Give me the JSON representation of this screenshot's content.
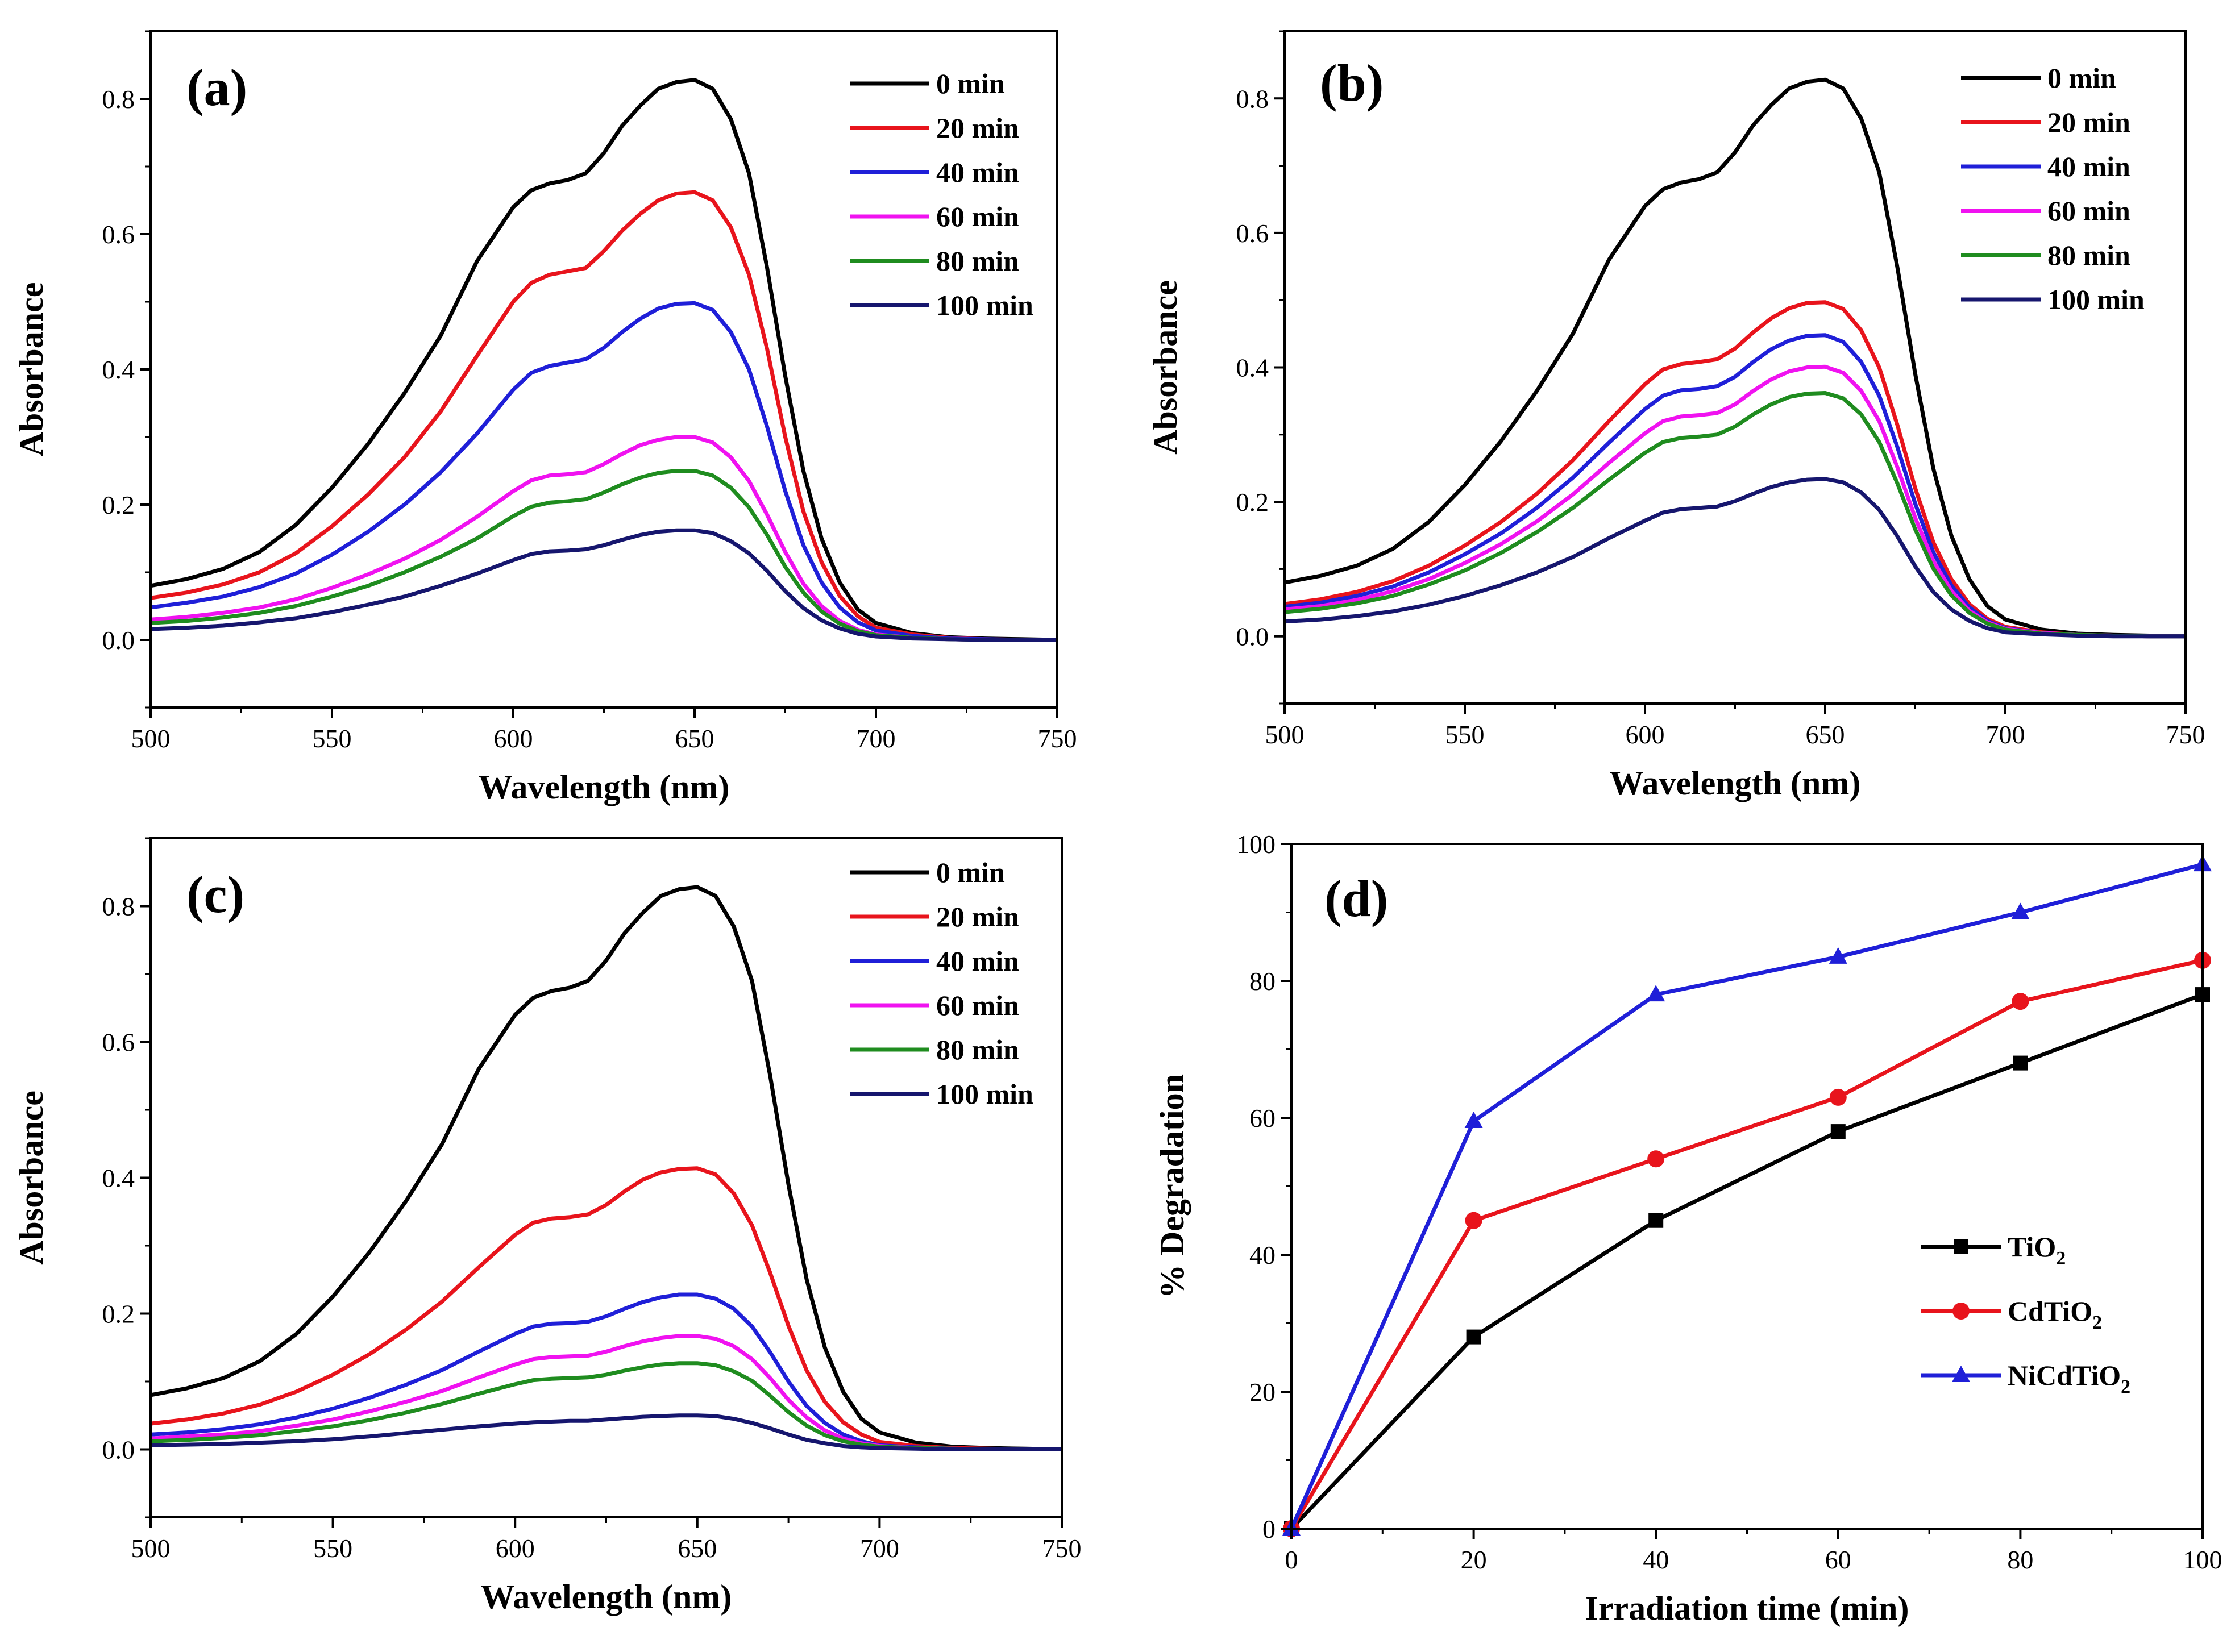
{
  "chart_data": [
    {
      "id": "a",
      "type": "line",
      "panel_label": "(a)",
      "xlabel": "Wavelength (nm)",
      "ylabel": "Absorbance",
      "xlim": [
        500,
        750
      ],
      "ylim": [
        -0.1,
        0.9
      ],
      "xticks": [
        500,
        550,
        600,
        650,
        700,
        750
      ],
      "yticks": [
        0.0,
        0.2,
        0.4,
        0.6,
        0.8
      ],
      "xtick_labels": [
        "500",
        "550",
        "600",
        "650",
        "700",
        "750"
      ],
      "ytick_labels": [
        "0.0",
        "0.2",
        "0.4",
        "0.6",
        "0.8"
      ],
      "legend_position": "top-right",
      "x": [
        500,
        510,
        520,
        530,
        540,
        550,
        560,
        570,
        580,
        590,
        600,
        605,
        610,
        615,
        620,
        625,
        630,
        635,
        640,
        645,
        650,
        655,
        660,
        665,
        670,
        675,
        680,
        685,
        690,
        695,
        700,
        710,
        720,
        730,
        740,
        750
      ],
      "series": [
        {
          "name": "0 min",
          "color": "#000000",
          "values": [
            0.08,
            0.09,
            0.105,
            0.13,
            0.17,
            0.225,
            0.29,
            0.365,
            0.45,
            0.56,
            0.64,
            0.665,
            0.675,
            0.68,
            0.69,
            0.72,
            0.76,
            0.79,
            0.815,
            0.825,
            0.828,
            0.815,
            0.77,
            0.69,
            0.55,
            0.39,
            0.25,
            0.15,
            0.085,
            0.045,
            0.025,
            0.01,
            0.004,
            0.002,
            0.001,
            0.0
          ]
        },
        {
          "name": "20 min",
          "color": "#e8141c",
          "values": [
            0.062,
            0.07,
            0.082,
            0.1,
            0.128,
            0.168,
            0.215,
            0.27,
            0.338,
            0.42,
            0.5,
            0.528,
            0.54,
            0.545,
            0.55,
            0.575,
            0.605,
            0.63,
            0.65,
            0.66,
            0.662,
            0.65,
            0.61,
            0.54,
            0.43,
            0.3,
            0.19,
            0.115,
            0.065,
            0.035,
            0.018,
            0.008,
            0.003,
            0.001,
            0.0,
            0.0
          ]
        },
        {
          "name": "40 min",
          "color": "#1f1fd8",
          "values": [
            0.048,
            0.055,
            0.064,
            0.078,
            0.098,
            0.126,
            0.16,
            0.2,
            0.248,
            0.305,
            0.37,
            0.395,
            0.405,
            0.41,
            0.415,
            0.432,
            0.455,
            0.475,
            0.49,
            0.497,
            0.498,
            0.488,
            0.455,
            0.4,
            0.315,
            0.22,
            0.14,
            0.085,
            0.048,
            0.026,
            0.014,
            0.006,
            0.002,
            0.001,
            0.0,
            0.0
          ]
        },
        {
          "name": "60 min",
          "color": "#f012f0",
          "values": [
            0.03,
            0.034,
            0.04,
            0.048,
            0.06,
            0.077,
            0.097,
            0.12,
            0.148,
            0.182,
            0.22,
            0.236,
            0.243,
            0.245,
            0.248,
            0.26,
            0.275,
            0.288,
            0.296,
            0.3,
            0.3,
            0.292,
            0.27,
            0.235,
            0.185,
            0.13,
            0.083,
            0.05,
            0.028,
            0.015,
            0.008,
            0.003,
            0.001,
            0.0,
            0.0,
            0.0
          ]
        },
        {
          "name": "80 min",
          "color": "#1f8c1f",
          "values": [
            0.025,
            0.028,
            0.033,
            0.04,
            0.05,
            0.064,
            0.08,
            0.1,
            0.123,
            0.15,
            0.183,
            0.197,
            0.203,
            0.205,
            0.208,
            0.218,
            0.23,
            0.24,
            0.247,
            0.25,
            0.25,
            0.243,
            0.225,
            0.196,
            0.155,
            0.108,
            0.07,
            0.042,
            0.024,
            0.013,
            0.007,
            0.003,
            0.001,
            0.0,
            0.0,
            0.0
          ]
        },
        {
          "name": "100 min",
          "color": "#16166e",
          "values": [
            0.016,
            0.018,
            0.021,
            0.026,
            0.032,
            0.041,
            0.052,
            0.064,
            0.08,
            0.098,
            0.118,
            0.127,
            0.131,
            0.132,
            0.134,
            0.14,
            0.148,
            0.155,
            0.16,
            0.162,
            0.162,
            0.158,
            0.146,
            0.128,
            0.102,
            0.072,
            0.047,
            0.029,
            0.017,
            0.009,
            0.005,
            0.002,
            0.001,
            0.0,
            0.0,
            0.0
          ]
        }
      ]
    },
    {
      "id": "b",
      "type": "line",
      "panel_label": "(b)",
      "xlabel": "Wavelength (nm)",
      "ylabel": "Absorbance",
      "xlim": [
        500,
        750
      ],
      "ylim": [
        -0.1,
        0.9
      ],
      "xticks": [
        500,
        550,
        600,
        650,
        700,
        750
      ],
      "yticks": [
        0.0,
        0.2,
        0.4,
        0.6,
        0.8
      ],
      "xtick_labels": [
        "500",
        "550",
        "600",
        "650",
        "700",
        "750"
      ],
      "ytick_labels": [
        "0.0",
        "0.2",
        "0.4",
        "0.6",
        "0.8"
      ],
      "legend_position": "top-right",
      "x": [
        500,
        510,
        520,
        530,
        540,
        550,
        560,
        570,
        580,
        590,
        600,
        605,
        610,
        615,
        620,
        625,
        630,
        635,
        640,
        645,
        650,
        655,
        660,
        665,
        670,
        675,
        680,
        685,
        690,
        695,
        700,
        710,
        720,
        730,
        740,
        750
      ],
      "series": [
        {
          "name": "0 min",
          "color": "#000000",
          "values": [
            0.08,
            0.09,
            0.105,
            0.13,
            0.17,
            0.225,
            0.29,
            0.365,
            0.45,
            0.56,
            0.64,
            0.665,
            0.675,
            0.68,
            0.69,
            0.72,
            0.76,
            0.79,
            0.815,
            0.825,
            0.828,
            0.815,
            0.77,
            0.69,
            0.55,
            0.39,
            0.25,
            0.15,
            0.085,
            0.045,
            0.025,
            0.01,
            0.004,
            0.002,
            0.001,
            0.0
          ]
        },
        {
          "name": "20 min",
          "color": "#e8141c",
          "values": [
            0.048,
            0.055,
            0.066,
            0.082,
            0.105,
            0.135,
            0.17,
            0.212,
            0.262,
            0.32,
            0.375,
            0.397,
            0.405,
            0.408,
            0.412,
            0.428,
            0.452,
            0.473,
            0.488,
            0.496,
            0.497,
            0.487,
            0.455,
            0.4,
            0.315,
            0.22,
            0.14,
            0.085,
            0.048,
            0.026,
            0.014,
            0.006,
            0.002,
            0.001,
            0.0,
            0.0
          ]
        },
        {
          "name": "40 min",
          "color": "#1f1fd8",
          "values": [
            0.044,
            0.05,
            0.06,
            0.074,
            0.095,
            0.122,
            0.153,
            0.191,
            0.236,
            0.288,
            0.338,
            0.358,
            0.366,
            0.368,
            0.372,
            0.386,
            0.408,
            0.427,
            0.44,
            0.447,
            0.448,
            0.438,
            0.408,
            0.358,
            0.282,
            0.197,
            0.125,
            0.076,
            0.043,
            0.023,
            0.012,
            0.005,
            0.002,
            0.001,
            0.0,
            0.0
          ]
        },
        {
          "name": "60 min",
          "color": "#f012f0",
          "values": [
            0.04,
            0.045,
            0.054,
            0.067,
            0.085,
            0.109,
            0.137,
            0.171,
            0.211,
            0.258,
            0.302,
            0.32,
            0.327,
            0.329,
            0.332,
            0.345,
            0.365,
            0.382,
            0.394,
            0.4,
            0.401,
            0.392,
            0.365,
            0.32,
            0.252,
            0.176,
            0.112,
            0.068,
            0.038,
            0.021,
            0.011,
            0.005,
            0.002,
            0.001,
            0.0,
            0.0
          ]
        },
        {
          "name": "80 min",
          "color": "#1f8c1f",
          "values": [
            0.036,
            0.041,
            0.049,
            0.06,
            0.077,
            0.098,
            0.124,
            0.155,
            0.191,
            0.233,
            0.273,
            0.289,
            0.295,
            0.297,
            0.3,
            0.312,
            0.33,
            0.345,
            0.356,
            0.361,
            0.362,
            0.354,
            0.33,
            0.289,
            0.228,
            0.159,
            0.101,
            0.061,
            0.035,
            0.019,
            0.01,
            0.004,
            0.002,
            0.001,
            0.0,
            0.0
          ]
        },
        {
          "name": "100 min",
          "color": "#16166e",
          "values": [
            0.022,
            0.025,
            0.03,
            0.037,
            0.047,
            0.06,
            0.076,
            0.095,
            0.118,
            0.146,
            0.172,
            0.184,
            0.189,
            0.191,
            0.193,
            0.201,
            0.212,
            0.222,
            0.229,
            0.233,
            0.234,
            0.229,
            0.214,
            0.188,
            0.149,
            0.104,
            0.066,
            0.04,
            0.023,
            0.012,
            0.006,
            0.003,
            0.001,
            0.0,
            0.0,
            0.0
          ]
        }
      ]
    },
    {
      "id": "c",
      "type": "line",
      "panel_label": "(c)",
      "xlabel": "Wavelength (nm)",
      "ylabel": "Absorbance",
      "xlim": [
        500,
        750
      ],
      "ylim": [
        -0.1,
        0.9
      ],
      "xticks": [
        500,
        550,
        600,
        650,
        700,
        750
      ],
      "yticks": [
        0.0,
        0.2,
        0.4,
        0.6,
        0.8
      ],
      "xtick_labels": [
        "500",
        "550",
        "600",
        "650",
        "700",
        "750"
      ],
      "ytick_labels": [
        "0.0",
        "0.2",
        "0.4",
        "0.6",
        "0.8"
      ],
      "legend_position": "top-right",
      "x": [
        500,
        510,
        520,
        530,
        540,
        550,
        560,
        570,
        580,
        590,
        600,
        605,
        610,
        615,
        620,
        625,
        630,
        635,
        640,
        645,
        650,
        655,
        660,
        665,
        670,
        675,
        680,
        685,
        690,
        695,
        700,
        710,
        720,
        730,
        740,
        750
      ],
      "series": [
        {
          "name": "0 min",
          "color": "#000000",
          "values": [
            0.08,
            0.09,
            0.105,
            0.13,
            0.17,
            0.225,
            0.29,
            0.365,
            0.45,
            0.56,
            0.64,
            0.665,
            0.675,
            0.68,
            0.69,
            0.72,
            0.76,
            0.79,
            0.815,
            0.825,
            0.828,
            0.815,
            0.77,
            0.69,
            0.55,
            0.39,
            0.25,
            0.15,
            0.085,
            0.045,
            0.025,
            0.01,
            0.004,
            0.002,
            0.001,
            0.0
          ]
        },
        {
          "name": "20 min",
          "color": "#e8141c",
          "values": [
            0.038,
            0.044,
            0.053,
            0.066,
            0.085,
            0.11,
            0.14,
            0.176,
            0.218,
            0.268,
            0.316,
            0.334,
            0.34,
            0.342,
            0.346,
            0.36,
            0.38,
            0.397,
            0.408,
            0.413,
            0.414,
            0.405,
            0.377,
            0.33,
            0.26,
            0.182,
            0.116,
            0.07,
            0.04,
            0.022,
            0.011,
            0.005,
            0.002,
            0.001,
            0.0,
            0.0
          ]
        },
        {
          "name": "40 min",
          "color": "#1f1fd8",
          "values": [
            0.022,
            0.025,
            0.03,
            0.037,
            0.047,
            0.06,
            0.076,
            0.095,
            0.117,
            0.144,
            0.17,
            0.181,
            0.185,
            0.186,
            0.188,
            0.196,
            0.207,
            0.217,
            0.224,
            0.228,
            0.228,
            0.222,
            0.207,
            0.181,
            0.143,
            0.1,
            0.064,
            0.039,
            0.022,
            0.012,
            0.006,
            0.003,
            0.001,
            0.0,
            0.0,
            0.0
          ]
        },
        {
          "name": "60 min",
          "color": "#f012f0",
          "values": [
            0.016,
            0.019,
            0.022,
            0.027,
            0.035,
            0.044,
            0.056,
            0.07,
            0.086,
            0.106,
            0.125,
            0.133,
            0.136,
            0.137,
            0.138,
            0.144,
            0.152,
            0.159,
            0.164,
            0.167,
            0.167,
            0.163,
            0.152,
            0.133,
            0.105,
            0.073,
            0.047,
            0.028,
            0.016,
            0.009,
            0.005,
            0.002,
            0.001,
            0.0,
            0.0,
            0.0
          ]
        },
        {
          "name": "80 min",
          "color": "#1f8c1f",
          "values": [
            0.012,
            0.014,
            0.017,
            0.021,
            0.027,
            0.034,
            0.043,
            0.054,
            0.067,
            0.082,
            0.096,
            0.102,
            0.104,
            0.105,
            0.106,
            0.11,
            0.116,
            0.121,
            0.125,
            0.127,
            0.127,
            0.124,
            0.115,
            0.101,
            0.079,
            0.055,
            0.035,
            0.021,
            0.012,
            0.007,
            0.004,
            0.002,
            0.001,
            0.0,
            0.0,
            0.0
          ]
        },
        {
          "name": "100 min",
          "color": "#16166e",
          "values": [
            0.006,
            0.007,
            0.008,
            0.01,
            0.012,
            0.015,
            0.019,
            0.024,
            0.029,
            0.034,
            0.038,
            0.04,
            0.041,
            0.042,
            0.042,
            0.044,
            0.046,
            0.048,
            0.049,
            0.05,
            0.05,
            0.049,
            0.045,
            0.039,
            0.031,
            0.022,
            0.014,
            0.009,
            0.005,
            0.003,
            0.002,
            0.001,
            0.0,
            0.0,
            0.0,
            0.0
          ]
        }
      ]
    },
    {
      "id": "d",
      "type": "line",
      "panel_label": "(d)",
      "xlabel": "Irradiation time (min)",
      "ylabel": "% Degradation",
      "xlim": [
        0,
        100
      ],
      "ylim": [
        0,
        100
      ],
      "xticks": [
        0,
        20,
        40,
        60,
        80,
        100
      ],
      "yticks": [
        0,
        20,
        40,
        60,
        80,
        100
      ],
      "xtick_labels": [
        "0",
        "20",
        "40",
        "60",
        "80",
        "100"
      ],
      "ytick_labels": [
        "0",
        "20",
        "40",
        "60",
        "80",
        "100"
      ],
      "legend_position": "center-right",
      "x": [
        0,
        20,
        40,
        60,
        80,
        100
      ],
      "series": [
        {
          "name": "TiO2",
          "label_base": "TiO",
          "label_sub": "2",
          "color": "#000000",
          "marker": "square",
          "values": [
            0,
            28,
            45,
            58,
            68,
            78
          ]
        },
        {
          "name": "CdTiO2",
          "label_base": "CdTiO",
          "label_sub": "2",
          "color": "#e8141c",
          "marker": "circle",
          "values": [
            0,
            45,
            54,
            63,
            77,
            83
          ]
        },
        {
          "name": "NiCdTiO2",
          "label_base": "NiCdTiO",
          "label_sub": "2",
          "color": "#1f1fd8",
          "marker": "triangle",
          "values": [
            0,
            59.5,
            78,
            83.5,
            90,
            97
          ]
        }
      ]
    }
  ]
}
